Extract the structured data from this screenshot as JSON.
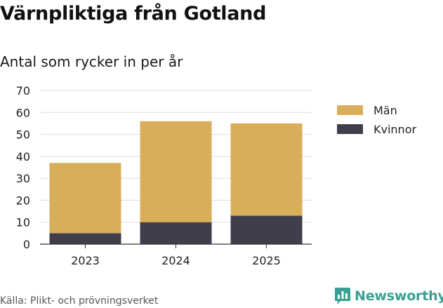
{
  "title": "Värnpliktiga från Gotland",
  "subtitle": "Antal som rycker in per år",
  "source": "Källa: Plikt- och prövningsverket",
  "brand": {
    "name": "Newsworthy",
    "color": "#3aa093",
    "icon": "bar-chart-logo-icon"
  },
  "colors": {
    "man": "#d9ae5a",
    "kvinnor": "#413e4c",
    "grid": "#dddddd",
    "axis": "#333333"
  },
  "chart_data": {
    "type": "bar",
    "stacked": true,
    "categories": [
      "2023",
      "2024",
      "2025"
    ],
    "series": [
      {
        "name": "Kvinnor",
        "values": [
          5,
          10,
          13
        ],
        "color": "#413e4c"
      },
      {
        "name": "Män",
        "values": [
          32,
          46,
          42
        ],
        "color": "#d9ae5a"
      }
    ],
    "legend": [
      {
        "name": "Män",
        "color": "#d9ae5a"
      },
      {
        "name": "Kvinnor",
        "color": "#413e4c"
      }
    ],
    "legend_position": "top-right",
    "yticks": [
      "0",
      "10",
      "20",
      "30",
      "40",
      "50",
      "60",
      "70"
    ],
    "ylim": [
      0,
      70
    ],
    "grid": true,
    "xlabel": "",
    "ylabel": ""
  }
}
